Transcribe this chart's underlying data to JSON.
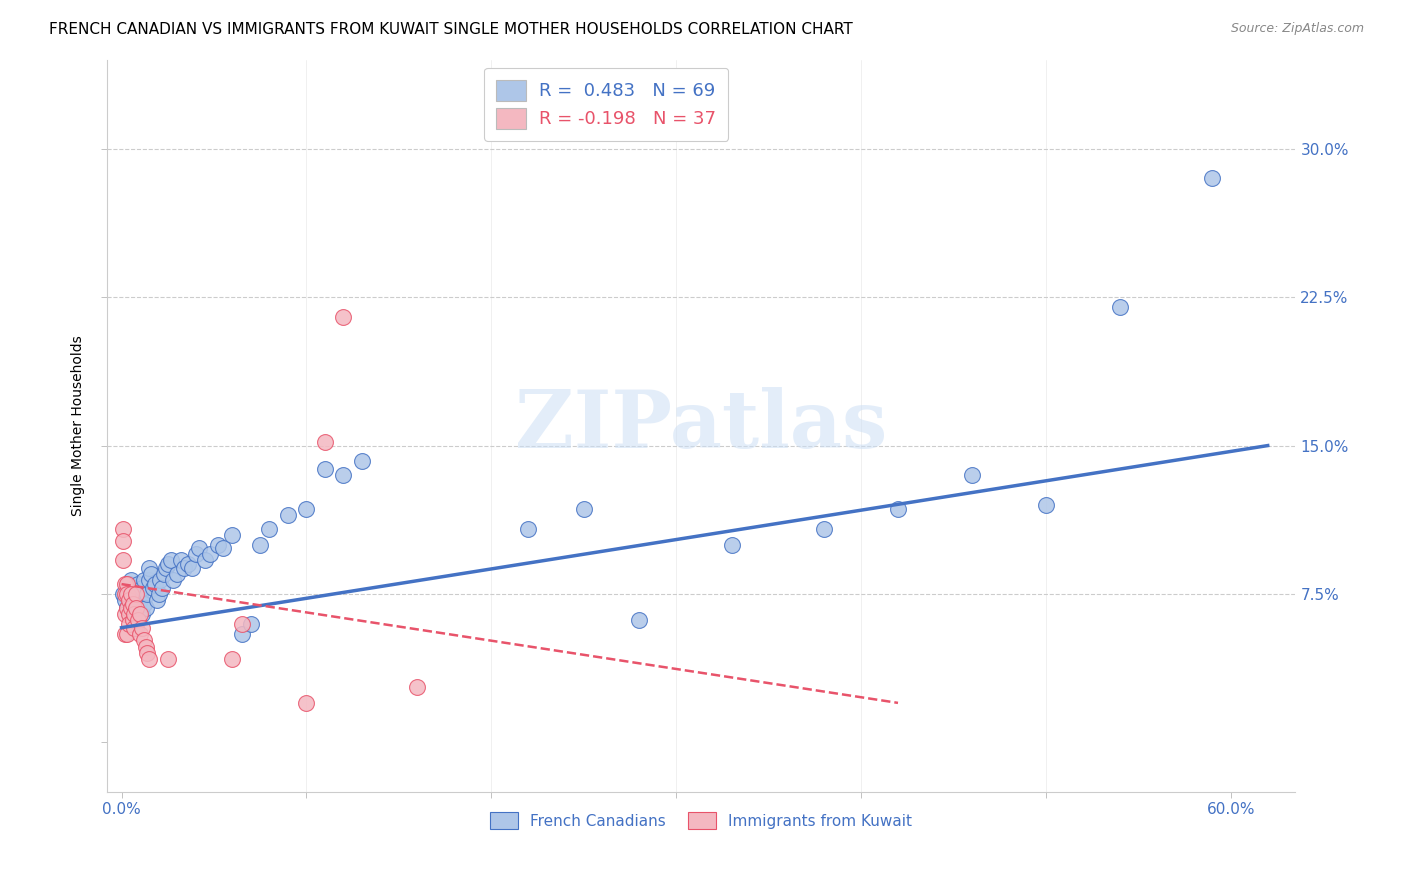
{
  "title": "FRENCH CANADIAN VS IMMIGRANTS FROM KUWAIT SINGLE MOTHER HOUSEHOLDS CORRELATION CHART",
  "source": "Source: ZipAtlas.com",
  "ylabel": "Single Mother Households",
  "yticks": [
    0.0,
    0.075,
    0.15,
    0.225,
    0.3
  ],
  "ytick_labels": [
    "",
    "7.5%",
    "15.0%",
    "22.5%",
    "30.0%"
  ],
  "xticks": [
    0.0,
    0.1,
    0.2,
    0.3,
    0.4,
    0.5,
    0.6
  ],
  "xlim": [
    -0.008,
    0.635
  ],
  "ylim": [
    -0.025,
    0.345
  ],
  "watermark": "ZIPatlas",
  "legend_entries": [
    {
      "label": "R =  0.483   N = 69",
      "color": "#aec6e8",
      "text_color": "#4472c4"
    },
    {
      "label": "R = -0.198   N = 37",
      "color": "#f4b8c1",
      "text_color": "#e8536a"
    }
  ],
  "legend_footer": [
    "French Canadians",
    "Immigrants from Kuwait"
  ],
  "legend_footer_colors": [
    "#aec6e8",
    "#f4b8c1"
  ],
  "blue_scatter_x": [
    0.001,
    0.002,
    0.003,
    0.003,
    0.004,
    0.004,
    0.005,
    0.005,
    0.006,
    0.006,
    0.007,
    0.007,
    0.008,
    0.008,
    0.009,
    0.009,
    0.01,
    0.01,
    0.011,
    0.011,
    0.012,
    0.012,
    0.013,
    0.014,
    0.015,
    0.015,
    0.016,
    0.017,
    0.018,
    0.019,
    0.02,
    0.021,
    0.022,
    0.023,
    0.024,
    0.025,
    0.027,
    0.028,
    0.03,
    0.032,
    0.034,
    0.036,
    0.038,
    0.04,
    0.042,
    0.045,
    0.048,
    0.052,
    0.055,
    0.06,
    0.065,
    0.07,
    0.075,
    0.08,
    0.09,
    0.1,
    0.11,
    0.12,
    0.13,
    0.22,
    0.25,
    0.28,
    0.33,
    0.38,
    0.42,
    0.46,
    0.5,
    0.54,
    0.59
  ],
  "blue_scatter_y": [
    0.075,
    0.072,
    0.068,
    0.078,
    0.065,
    0.08,
    0.07,
    0.082,
    0.068,
    0.075,
    0.062,
    0.078,
    0.058,
    0.075,
    0.068,
    0.08,
    0.072,
    0.075,
    0.065,
    0.078,
    0.07,
    0.082,
    0.068,
    0.075,
    0.082,
    0.088,
    0.085,
    0.078,
    0.08,
    0.072,
    0.075,
    0.082,
    0.078,
    0.085,
    0.088,
    0.09,
    0.092,
    0.082,
    0.085,
    0.092,
    0.088,
    0.09,
    0.088,
    0.095,
    0.098,
    0.092,
    0.095,
    0.1,
    0.098,
    0.105,
    0.055,
    0.06,
    0.1,
    0.108,
    0.115,
    0.118,
    0.138,
    0.135,
    0.142,
    0.108,
    0.118,
    0.062,
    0.1,
    0.108,
    0.118,
    0.135,
    0.12,
    0.22,
    0.285
  ],
  "pink_scatter_x": [
    0.001,
    0.001,
    0.001,
    0.002,
    0.002,
    0.002,
    0.002,
    0.003,
    0.003,
    0.003,
    0.003,
    0.004,
    0.004,
    0.004,
    0.005,
    0.005,
    0.006,
    0.006,
    0.007,
    0.007,
    0.008,
    0.008,
    0.009,
    0.01,
    0.01,
    0.011,
    0.012,
    0.013,
    0.014,
    0.015,
    0.025,
    0.06,
    0.065,
    0.1,
    0.11,
    0.12,
    0.16
  ],
  "pink_scatter_y": [
    0.108,
    0.102,
    0.092,
    0.08,
    0.075,
    0.065,
    0.055,
    0.08,
    0.075,
    0.068,
    0.055,
    0.072,
    0.065,
    0.06,
    0.075,
    0.068,
    0.07,
    0.062,
    0.065,
    0.058,
    0.075,
    0.068,
    0.062,
    0.065,
    0.055,
    0.058,
    0.052,
    0.048,
    0.045,
    0.042,
    0.042,
    0.042,
    0.06,
    0.02,
    0.152,
    0.215,
    0.028
  ],
  "blue_line_x": [
    0.0,
    0.62
  ],
  "blue_line_y": [
    0.058,
    0.15
  ],
  "pink_line_x": [
    0.0,
    0.42
  ],
  "pink_line_y": [
    0.08,
    0.02
  ],
  "blue_color": "#4472c4",
  "pink_color": "#e8536a",
  "blue_face": "#aec6e8",
  "pink_face": "#f4b8c1",
  "grid_color": "#cccccc",
  "background_color": "#ffffff",
  "title_fontsize": 11,
  "axis_label_fontsize": 10,
  "tick_fontsize": 11
}
